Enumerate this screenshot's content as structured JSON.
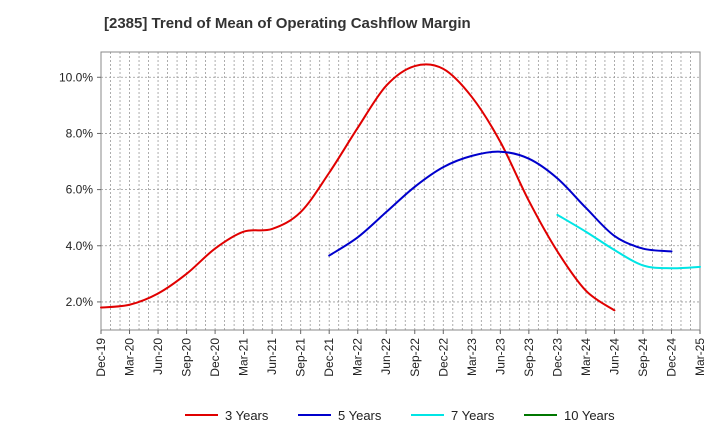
{
  "chart_data": {
    "type": "line",
    "title": "[2385]  Trend of Mean of Operating Cashflow Margin",
    "xlabel": "",
    "ylabel": "",
    "ylim": [
      1.0,
      10.9
    ],
    "y_ticks": [
      2,
      4,
      6,
      8,
      10
    ],
    "y_tick_labels": [
      "2.0%",
      "4.0%",
      "6.0%",
      "8.0%",
      "10.0%"
    ],
    "x_tick_labels": [
      "Dec-19",
      "Mar-20",
      "Jun-20",
      "Sep-20",
      "Dec-20",
      "Mar-21",
      "Jun-21",
      "Sep-21",
      "Dec-21",
      "Mar-22",
      "Jun-22",
      "Sep-22",
      "Dec-22",
      "Mar-23",
      "Jun-23",
      "Sep-23",
      "Dec-23",
      "Mar-24",
      "Jun-24",
      "Sep-24",
      "Dec-24",
      "Mar-25"
    ],
    "grid": true,
    "legend_position": "bottom",
    "series": [
      {
        "name": "3 Years",
        "color": "#e00000",
        "start_index": 0,
        "values": [
          1.8,
          1.9,
          2.3,
          3.0,
          3.9,
          4.5,
          4.6,
          5.2,
          6.6,
          8.2,
          9.7,
          10.4,
          10.3,
          9.3,
          7.7,
          5.6,
          3.8,
          2.4,
          1.7
        ]
      },
      {
        "name": "5 Years",
        "color": "#0000cc",
        "start_index": 8,
        "values": [
          3.65,
          4.3,
          5.2,
          6.1,
          6.8,
          7.2,
          7.35,
          7.1,
          6.4,
          5.35,
          4.35,
          3.9,
          3.8
        ]
      },
      {
        "name": "7 Years",
        "color": "#00e5e5",
        "start_index": 16,
        "values": [
          5.1,
          4.5,
          3.85,
          3.3,
          3.2,
          3.25
        ]
      },
      {
        "name": "10 Years",
        "color": "#007700",
        "start_index": 0,
        "values": []
      }
    ]
  }
}
